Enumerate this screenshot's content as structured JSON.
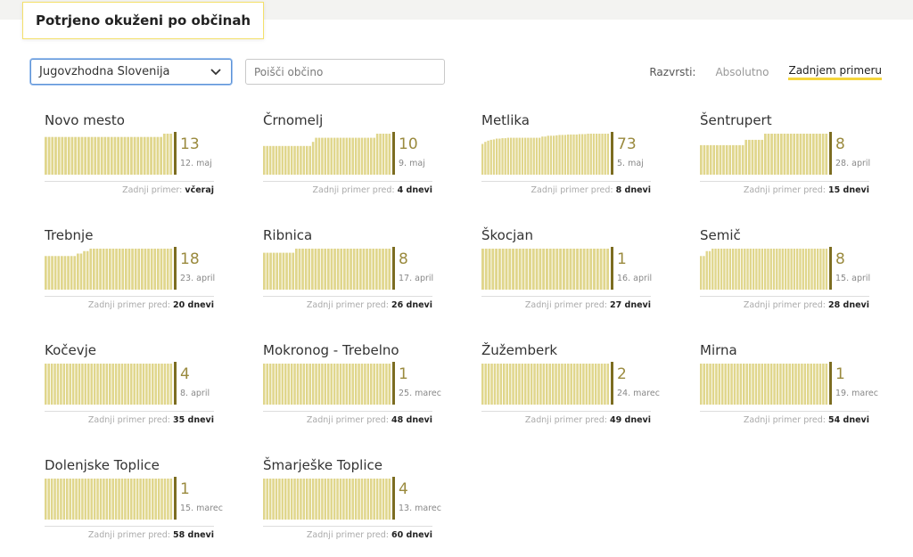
{
  "title": "Potrjeno okuženi po občinah",
  "filter": {
    "region_selected": "Jugovzhodna Slovenija",
    "search_placeholder": "Poišči občino"
  },
  "sort": {
    "label": "Razvrsti:",
    "options": [
      "Absolutno",
      "Zadnjem primeru"
    ],
    "active": "Zadnjem primeru"
  },
  "colors": {
    "bar": "#e0d68c",
    "bar_last": "#7c6d21",
    "count": "#9a8a3e",
    "accent": "#f5d53b"
  },
  "municipalities": [
    {
      "name": "Novo mesto",
      "count": "13",
      "date": "12. maj",
      "last_label": "Zadnji primer:",
      "last_value": "včeraj",
      "bars": [
        0.92,
        0.92,
        0.92,
        0.92,
        0.92,
        0.92,
        0.92,
        0.92,
        0.92,
        0.92,
        0.92,
        0.92,
        0.92,
        0.92,
        0.92,
        0.92,
        0.92,
        0.92,
        0.92,
        0.92,
        0.92,
        0.92,
        0.92,
        0.92,
        0.92,
        0.92,
        0.92,
        0.92,
        0.92,
        0.92,
        0.92,
        0.92,
        0.92,
        0.92,
        0.92,
        0.92,
        1,
        1,
        1
      ]
    },
    {
      "name": "Črnomelj",
      "count": "10",
      "date": "9. maj",
      "last_label": "Zadnji primer pred:",
      "last_value": "4 dnevi",
      "bars": [
        0.7,
        0.7,
        0.7,
        0.7,
        0.7,
        0.7,
        0.7,
        0.7,
        0.7,
        0.7,
        0.7,
        0.7,
        0.7,
        0.7,
        0.7,
        0.7,
        0.8,
        0.9,
        0.9,
        0.9,
        0.9,
        0.9,
        0.9,
        0.9,
        0.9,
        0.9,
        0.9,
        0.9,
        0.9,
        0.9,
        0.9,
        0.9,
        0.9,
        0.9,
        0.9,
        0.9,
        0.9,
        1,
        1,
        1,
        1,
        1
      ]
    },
    {
      "name": "Metlika",
      "count": "73",
      "date": "5. maj",
      "last_label": "Zadnji primer pred:",
      "last_value": "8 dnevi",
      "bars": [
        0.75,
        0.8,
        0.83,
        0.85,
        0.86,
        0.88,
        0.88,
        0.89,
        0.89,
        0.9,
        0.9,
        0.9,
        0.9,
        0.9,
        0.9,
        0.9,
        0.9,
        0.9,
        0.9,
        0.9,
        0.9,
        0.93,
        0.93,
        0.95,
        0.95,
        0.95,
        0.96,
        0.97,
        0.97,
        0.97,
        0.98,
        0.98,
        0.98,
        0.98,
        0.99,
        0.99,
        0.99,
        1,
        1,
        1,
        1,
        1,
        1,
        1,
        1
      ]
    },
    {
      "name": "Šentrupert",
      "count": "8",
      "date": "28. april",
      "last_label": "Zadnji primer pred:",
      "last_value": "15 dnevi",
      "bars": [
        0.72,
        0.72,
        0.72,
        0.72,
        0.72,
        0.72,
        0.72,
        0.72,
        0.72,
        0.72,
        0.72,
        0.72,
        0.72,
        0.72,
        0.85,
        0.85,
        0.85,
        0.85,
        0.85,
        0.85,
        1,
        1,
        1,
        1,
        1,
        1,
        1,
        1,
        1,
        1,
        1,
        1,
        1,
        1,
        1,
        1,
        1,
        1,
        1,
        1
      ]
    },
    {
      "name": "Trebnje",
      "count": "18",
      "date": "23. april",
      "last_label": "Zadnji primer pred:",
      "last_value": "20 dnevi",
      "bars": [
        0.82,
        0.82,
        0.82,
        0.82,
        0.82,
        0.82,
        0.82,
        0.82,
        0.82,
        0.82,
        0.88,
        0.88,
        0.94,
        0.94,
        1,
        1,
        1,
        1,
        1,
        1,
        1,
        1,
        1,
        1,
        1,
        1,
        1,
        1,
        1,
        1,
        1,
        1,
        1,
        1,
        1,
        1,
        1,
        1,
        1,
        1
      ]
    },
    {
      "name": "Ribnica",
      "count": "8",
      "date": "17. april",
      "last_label": "Zadnji primer pred:",
      "last_value": "26 dnevi",
      "bars": [
        0.9,
        0.9,
        0.9,
        0.9,
        0.9,
        0.9,
        0.9,
        0.9,
        0.9,
        0.9,
        1,
        1,
        1,
        1,
        1,
        1,
        1,
        1,
        1,
        1,
        1,
        1,
        1,
        1,
        1,
        1,
        1,
        1,
        1,
        1,
        1,
        1,
        1,
        1,
        1,
        1,
        1,
        1,
        1,
        1
      ]
    },
    {
      "name": "Škocjan",
      "count": "1",
      "date": "16. april",
      "last_label": "Zadnji primer pred:",
      "last_value": "27 dnevi",
      "bars": [
        1,
        1,
        1,
        1,
        1,
        1,
        1,
        1,
        1,
        1,
        1,
        1,
        1,
        1,
        1,
        1,
        1,
        1,
        1,
        1,
        1,
        1,
        1,
        1,
        1,
        1,
        1,
        1,
        1,
        1,
        1,
        1,
        1,
        1,
        1,
        1,
        1,
        1
      ]
    },
    {
      "name": "Semič",
      "count": "8",
      "date": "15. april",
      "last_label": "Zadnji primer pred:",
      "last_value": "28 dnevi",
      "bars": [
        0.82,
        0.82,
        0.94,
        0.94,
        1,
        1,
        1,
        1,
        1,
        1,
        1,
        1,
        1,
        1,
        1,
        1,
        1,
        1,
        1,
        1,
        1,
        1,
        1,
        1,
        1,
        1,
        1,
        1,
        1,
        1,
        1,
        1,
        1,
        1,
        1,
        1,
        1,
        1,
        1,
        1,
        1,
        1,
        1,
        1
      ]
    },
    {
      "name": "Kočevje",
      "count": "4",
      "date": "8. april",
      "last_label": "Zadnji primer pred:",
      "last_value": "35 dnevi",
      "bars": [
        1,
        1,
        1,
        1,
        1,
        1,
        1,
        1,
        1,
        1,
        1,
        1,
        1,
        1,
        1,
        1,
        1,
        1,
        1,
        1,
        1,
        1,
        1,
        1,
        1,
        1,
        1,
        1,
        1,
        1,
        1,
        1,
        1,
        1,
        1,
        1,
        1,
        1,
        1,
        1,
        1,
        1
      ]
    },
    {
      "name": "Mokronog - Trebelno",
      "count": "1",
      "date": "25. marec",
      "last_label": "Zadnji primer pred:",
      "last_value": "48 dnevi",
      "bars": [
        1,
        1,
        1,
        1,
        1,
        1,
        1,
        1,
        1,
        1,
        1,
        1,
        1,
        1,
        1,
        1,
        1,
        1,
        1,
        1,
        1,
        1,
        1,
        1,
        1,
        1,
        1,
        1,
        1,
        1,
        1,
        1,
        1,
        1,
        1,
        1,
        1,
        1,
        1,
        1,
        1,
        1
      ]
    },
    {
      "name": "Žužemberk",
      "count": "2",
      "date": "24. marec",
      "last_label": "Zadnji primer pred:",
      "last_value": "49 dnevi",
      "bars": [
        1,
        1,
        1,
        1,
        1,
        1,
        1,
        1,
        1,
        1,
        1,
        1,
        1,
        1,
        1,
        1,
        1,
        1,
        1,
        1,
        1,
        1,
        1,
        1,
        1,
        1,
        1,
        1,
        1,
        1,
        1,
        1,
        1,
        1,
        1,
        1,
        1,
        1,
        1,
        1,
        1,
        1
      ]
    },
    {
      "name": "Mirna",
      "count": "1",
      "date": "19. marec",
      "last_label": "Zadnji primer pred:",
      "last_value": "54 dnevi",
      "bars": [
        1,
        1,
        1,
        1,
        1,
        1,
        1,
        1,
        1,
        1,
        1,
        1,
        1,
        1,
        1,
        1,
        1,
        1,
        1,
        1,
        1,
        1,
        1,
        1,
        1,
        1,
        1,
        1,
        1,
        1,
        1,
        1,
        1,
        1,
        1,
        1,
        1,
        1,
        1,
        1,
        1,
        1
      ]
    },
    {
      "name": "Dolenjske Toplice",
      "count": "1",
      "date": "15. marec",
      "last_label": "Zadnji primer pred:",
      "last_value": "58 dnevi",
      "bars": [
        1,
        1,
        1,
        1,
        1,
        1,
        1,
        1,
        1,
        1,
        1,
        1,
        1,
        1,
        1,
        1,
        1,
        1,
        1,
        1,
        1,
        1,
        1,
        1,
        1,
        1,
        1,
        1,
        1,
        1,
        1,
        1,
        1,
        1,
        1,
        1,
        1,
        1,
        1,
        1,
        1,
        1
      ]
    },
    {
      "name": "Šmarješke Toplice",
      "count": "4",
      "date": "13. marec",
      "last_label": "Zadnji primer pred:",
      "last_value": "60 dnevi",
      "bars": [
        1,
        1,
        1,
        1,
        1,
        1,
        1,
        1,
        1,
        1,
        1,
        1,
        1,
        1,
        1,
        1,
        1,
        1,
        1,
        1,
        1,
        1,
        1,
        1,
        1,
        1,
        1,
        1,
        1,
        1,
        1,
        1,
        1,
        1,
        1,
        1,
        1,
        1,
        1,
        1,
        1,
        1
      ]
    }
  ]
}
